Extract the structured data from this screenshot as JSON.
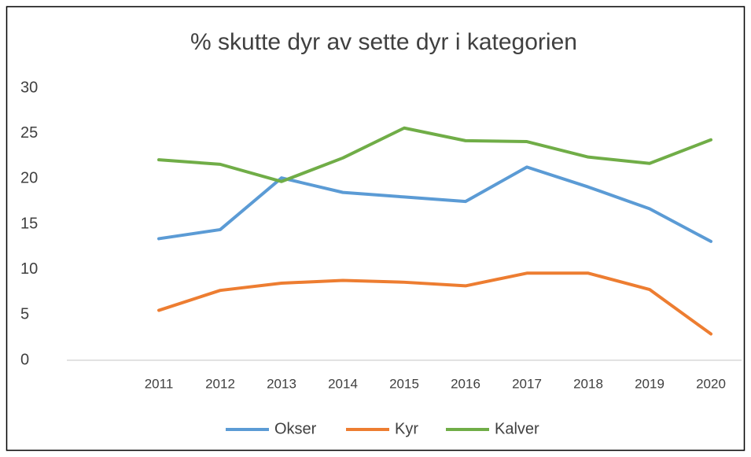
{
  "chart_data": {
    "type": "line",
    "title": "% skutte dyr av sette dyr i kategorien",
    "categories": [
      null,
      "2011",
      "2012",
      "2013",
      "2014",
      "2015",
      "2016",
      "2017",
      "2018",
      "2019",
      "2020"
    ],
    "series": [
      {
        "name": "Okser",
        "color": "#5b9bd5",
        "values": [
          null,
          13.4,
          14.4,
          20.1,
          18.5,
          18.0,
          17.5,
          21.3,
          19.1,
          16.7,
          13.1
        ]
      },
      {
        "name": "Kyr",
        "color": "#ed7d31",
        "values": [
          null,
          5.5,
          7.7,
          8.5,
          8.8,
          8.6,
          8.2,
          9.6,
          9.6,
          7.8,
          2.9
        ]
      },
      {
        "name": "Kalver",
        "color": "#70ad47",
        "values": [
          null,
          22.1,
          21.6,
          19.7,
          22.3,
          25.6,
          24.2,
          24.1,
          22.4,
          21.7,
          24.3
        ]
      }
    ],
    "ylim": [
      0,
      30
    ],
    "yticks": [
      0,
      5,
      10,
      15,
      20,
      25,
      30
    ],
    "grid": false,
    "legend": "bottom"
  }
}
